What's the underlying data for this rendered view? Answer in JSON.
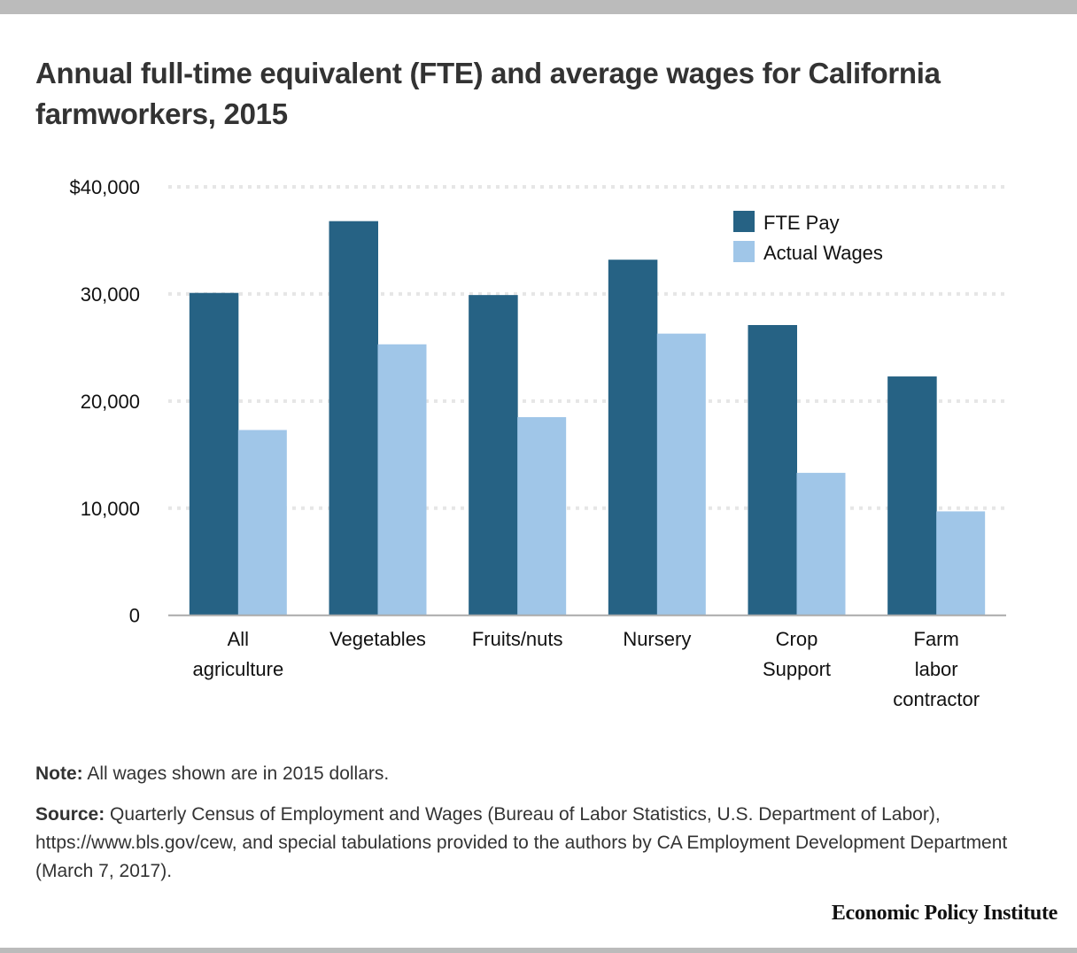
{
  "header": {
    "title": "Annual full-time equivalent (FTE) and average wages for California farmworkers, 2015"
  },
  "footer": {
    "note_label": "Note:",
    "note_text": " All wages shown are in 2015 dollars.",
    "source_label": "Source:",
    "source_text": " Quarterly Census of Employment and Wages (Bureau of Labor Statistics, U.S. Department of Labor), https://www.bls.gov/cew, and special tabulations provided to the authors by CA Employment Development Department (March 7, 2017).",
    "brand": "Economic Policy Institute"
  },
  "colors": {
    "fte": "#266284",
    "actual": "#a0c6e8",
    "grid": "#e6e6e6",
    "baseline": "#aaaaaa"
  },
  "chart_data": {
    "type": "bar",
    "title": "Annual full-time equivalent (FTE) and average wages for California farmworkers, 2015",
    "xlabel": "",
    "ylabel": "",
    "categories": [
      [
        "All",
        "agriculture"
      ],
      [
        "Vegetables"
      ],
      [
        "Fruits/nuts"
      ],
      [
        "Nursery"
      ],
      [
        "Crop",
        "Support"
      ],
      [
        "Farm",
        "labor",
        "contractor"
      ]
    ],
    "series": [
      {
        "name": "FTE Pay",
        "values": [
          30100,
          36800,
          29900,
          33200,
          27100,
          22300
        ]
      },
      {
        "name": "Actual Wages",
        "values": [
          17300,
          25300,
          18500,
          26300,
          13300,
          9700
        ]
      }
    ],
    "ylim": [
      0,
      40000
    ],
    "yticks": [
      0,
      10000,
      20000,
      30000,
      40000
    ],
    "ytick_labels": [
      "0",
      "10,000",
      "20,000",
      "30,000",
      "$40,000"
    ],
    "grid": true,
    "legend_position": "top-right"
  }
}
